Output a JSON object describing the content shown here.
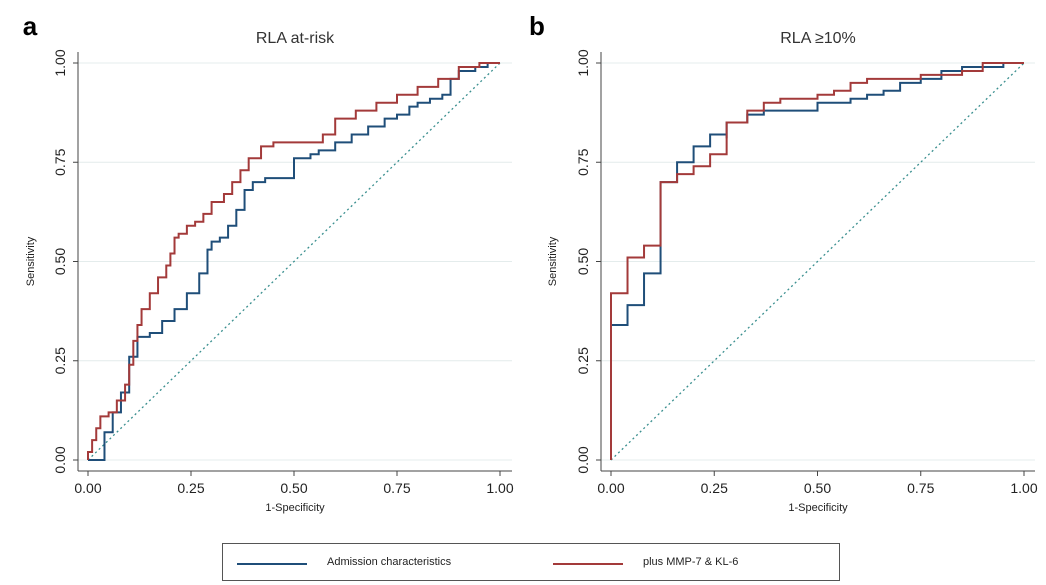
{
  "colors": {
    "series_admission": "#1f4e79",
    "series_plus": "#a33a3a",
    "reference_line": "#3a8f8f",
    "grid": "#e4ecec",
    "axis": "#444444"
  },
  "legend": {
    "items": [
      {
        "label": "Admission characteristics",
        "color": "#1f4e79"
      },
      {
        "label": "plus MMP-7 & KL-6",
        "color": "#a33a3a"
      }
    ]
  },
  "chart_data": [
    {
      "panel_label": "a",
      "type": "line",
      "title": "RLA at-risk",
      "xlabel": "1-Specificity",
      "ylabel": "Sensitivity",
      "xlim": [
        0,
        1
      ],
      "ylim": [
        0,
        1
      ],
      "xticks": [
        "0.00",
        "0.25",
        "0.50",
        "0.75",
        "1.00"
      ],
      "yticks": [
        "0.00",
        "0.25",
        "0.50",
        "0.75",
        "1.00"
      ],
      "grid": true,
      "reference_diagonal": true,
      "series": [
        {
          "name": "Admission characteristics",
          "x": [
            0,
            0.04,
            0.06,
            0.08,
            0.1,
            0.12,
            0.13,
            0.15,
            0.18,
            0.21,
            0.24,
            0.27,
            0.29,
            0.3,
            0.32,
            0.34,
            0.36,
            0.38,
            0.4,
            0.43,
            0.46,
            0.48,
            0.5,
            0.54,
            0.56,
            0.6,
            0.64,
            0.68,
            0.72,
            0.75,
            0.78,
            0.8,
            0.83,
            0.86,
            0.88,
            0.9,
            0.94,
            0.97,
            1.0
          ],
          "y": [
            0,
            0,
            0.07,
            0.12,
            0.17,
            0.26,
            0.31,
            0.31,
            0.32,
            0.35,
            0.38,
            0.42,
            0.47,
            0.53,
            0.55,
            0.56,
            0.59,
            0.63,
            0.68,
            0.7,
            0.71,
            0.71,
            0.71,
            0.76,
            0.77,
            0.78,
            0.8,
            0.82,
            0.84,
            0.86,
            0.87,
            0.89,
            0.9,
            0.91,
            0.92,
            0.96,
            0.98,
            0.99,
            1.0
          ]
        },
        {
          "name": "plus MMP-7 & KL-6",
          "x": [
            0,
            0.01,
            0.02,
            0.03,
            0.05,
            0.07,
            0.09,
            0.1,
            0.11,
            0.12,
            0.13,
            0.15,
            0.17,
            0.19,
            0.2,
            0.21,
            0.22,
            0.24,
            0.26,
            0.28,
            0.3,
            0.33,
            0.35,
            0.37,
            0.39,
            0.42,
            0.45,
            0.47,
            0.5,
            0.52,
            0.55,
            0.57,
            0.6,
            0.65,
            0.7,
            0.75,
            0.8,
            0.85,
            0.9,
            0.95,
            1.0
          ],
          "y": [
            0,
            0.02,
            0.05,
            0.08,
            0.11,
            0.12,
            0.15,
            0.19,
            0.24,
            0.3,
            0.34,
            0.38,
            0.42,
            0.46,
            0.49,
            0.52,
            0.56,
            0.57,
            0.59,
            0.6,
            0.62,
            0.65,
            0.67,
            0.7,
            0.73,
            0.76,
            0.79,
            0.8,
            0.8,
            0.8,
            0.8,
            0.8,
            0.82,
            0.86,
            0.88,
            0.9,
            0.92,
            0.94,
            0.96,
            0.99,
            1.0
          ]
        }
      ]
    },
    {
      "panel_label": "b",
      "type": "line",
      "title": "RLA ≥10%",
      "xlabel": "1-Specificity",
      "ylabel": "Sensitivity",
      "xlim": [
        0,
        1
      ],
      "ylim": [
        0,
        1
      ],
      "xticks": [
        "0.00",
        "0.25",
        "0.50",
        "0.75",
        "1.00"
      ],
      "yticks": [
        "0.00",
        "0.25",
        "0.50",
        "0.75",
        "1.00"
      ],
      "grid": true,
      "reference_diagonal": true,
      "series": [
        {
          "name": "Admission characteristics",
          "x": [
            0,
            0,
            0.04,
            0.04,
            0.08,
            0.08,
            0.12,
            0.12,
            0.16,
            0.16,
            0.2,
            0.2,
            0.24,
            0.24,
            0.28,
            0.28,
            0.33,
            0.37,
            0.41,
            0.45,
            0.5,
            0.54,
            0.58,
            0.62,
            0.66,
            0.7,
            0.75,
            0.8,
            0.85,
            0.9,
            0.95,
            1.0
          ],
          "y": [
            0,
            0.34,
            0.34,
            0.39,
            0.39,
            0.47,
            0.47,
            0.7,
            0.7,
            0.75,
            0.75,
            0.79,
            0.79,
            0.82,
            0.82,
            0.81,
            0.85,
            0.87,
            0.88,
            0.88,
            0.88,
            0.9,
            0.9,
            0.91,
            0.92,
            0.93,
            0.95,
            0.96,
            0.98,
            0.99,
            0.99,
            1.0
          ]
        },
        {
          "name": "plus MMP-7 & KL-6",
          "x": [
            0,
            0,
            0.04,
            0.04,
            0.08,
            0.08,
            0.12,
            0.12,
            0.16,
            0.16,
            0.2,
            0.2,
            0.24,
            0.24,
            0.28,
            0.28,
            0.33,
            0.37,
            0.41,
            0.45,
            0.5,
            0.54,
            0.58,
            0.62,
            0.66,
            0.7,
            0.75,
            0.8,
            0.85,
            0.9,
            0.95,
            1.0
          ],
          "y": [
            0,
            0.42,
            0.42,
            0.51,
            0.51,
            0.54,
            0.54,
            0.7,
            0.7,
            0.72,
            0.72,
            0.74,
            0.74,
            0.77,
            0.77,
            0.81,
            0.85,
            0.88,
            0.9,
            0.91,
            0.91,
            0.92,
            0.93,
            0.95,
            0.96,
            0.96,
            0.96,
            0.97,
            0.97,
            0.98,
            1.0,
            1.0
          ]
        }
      ]
    }
  ]
}
